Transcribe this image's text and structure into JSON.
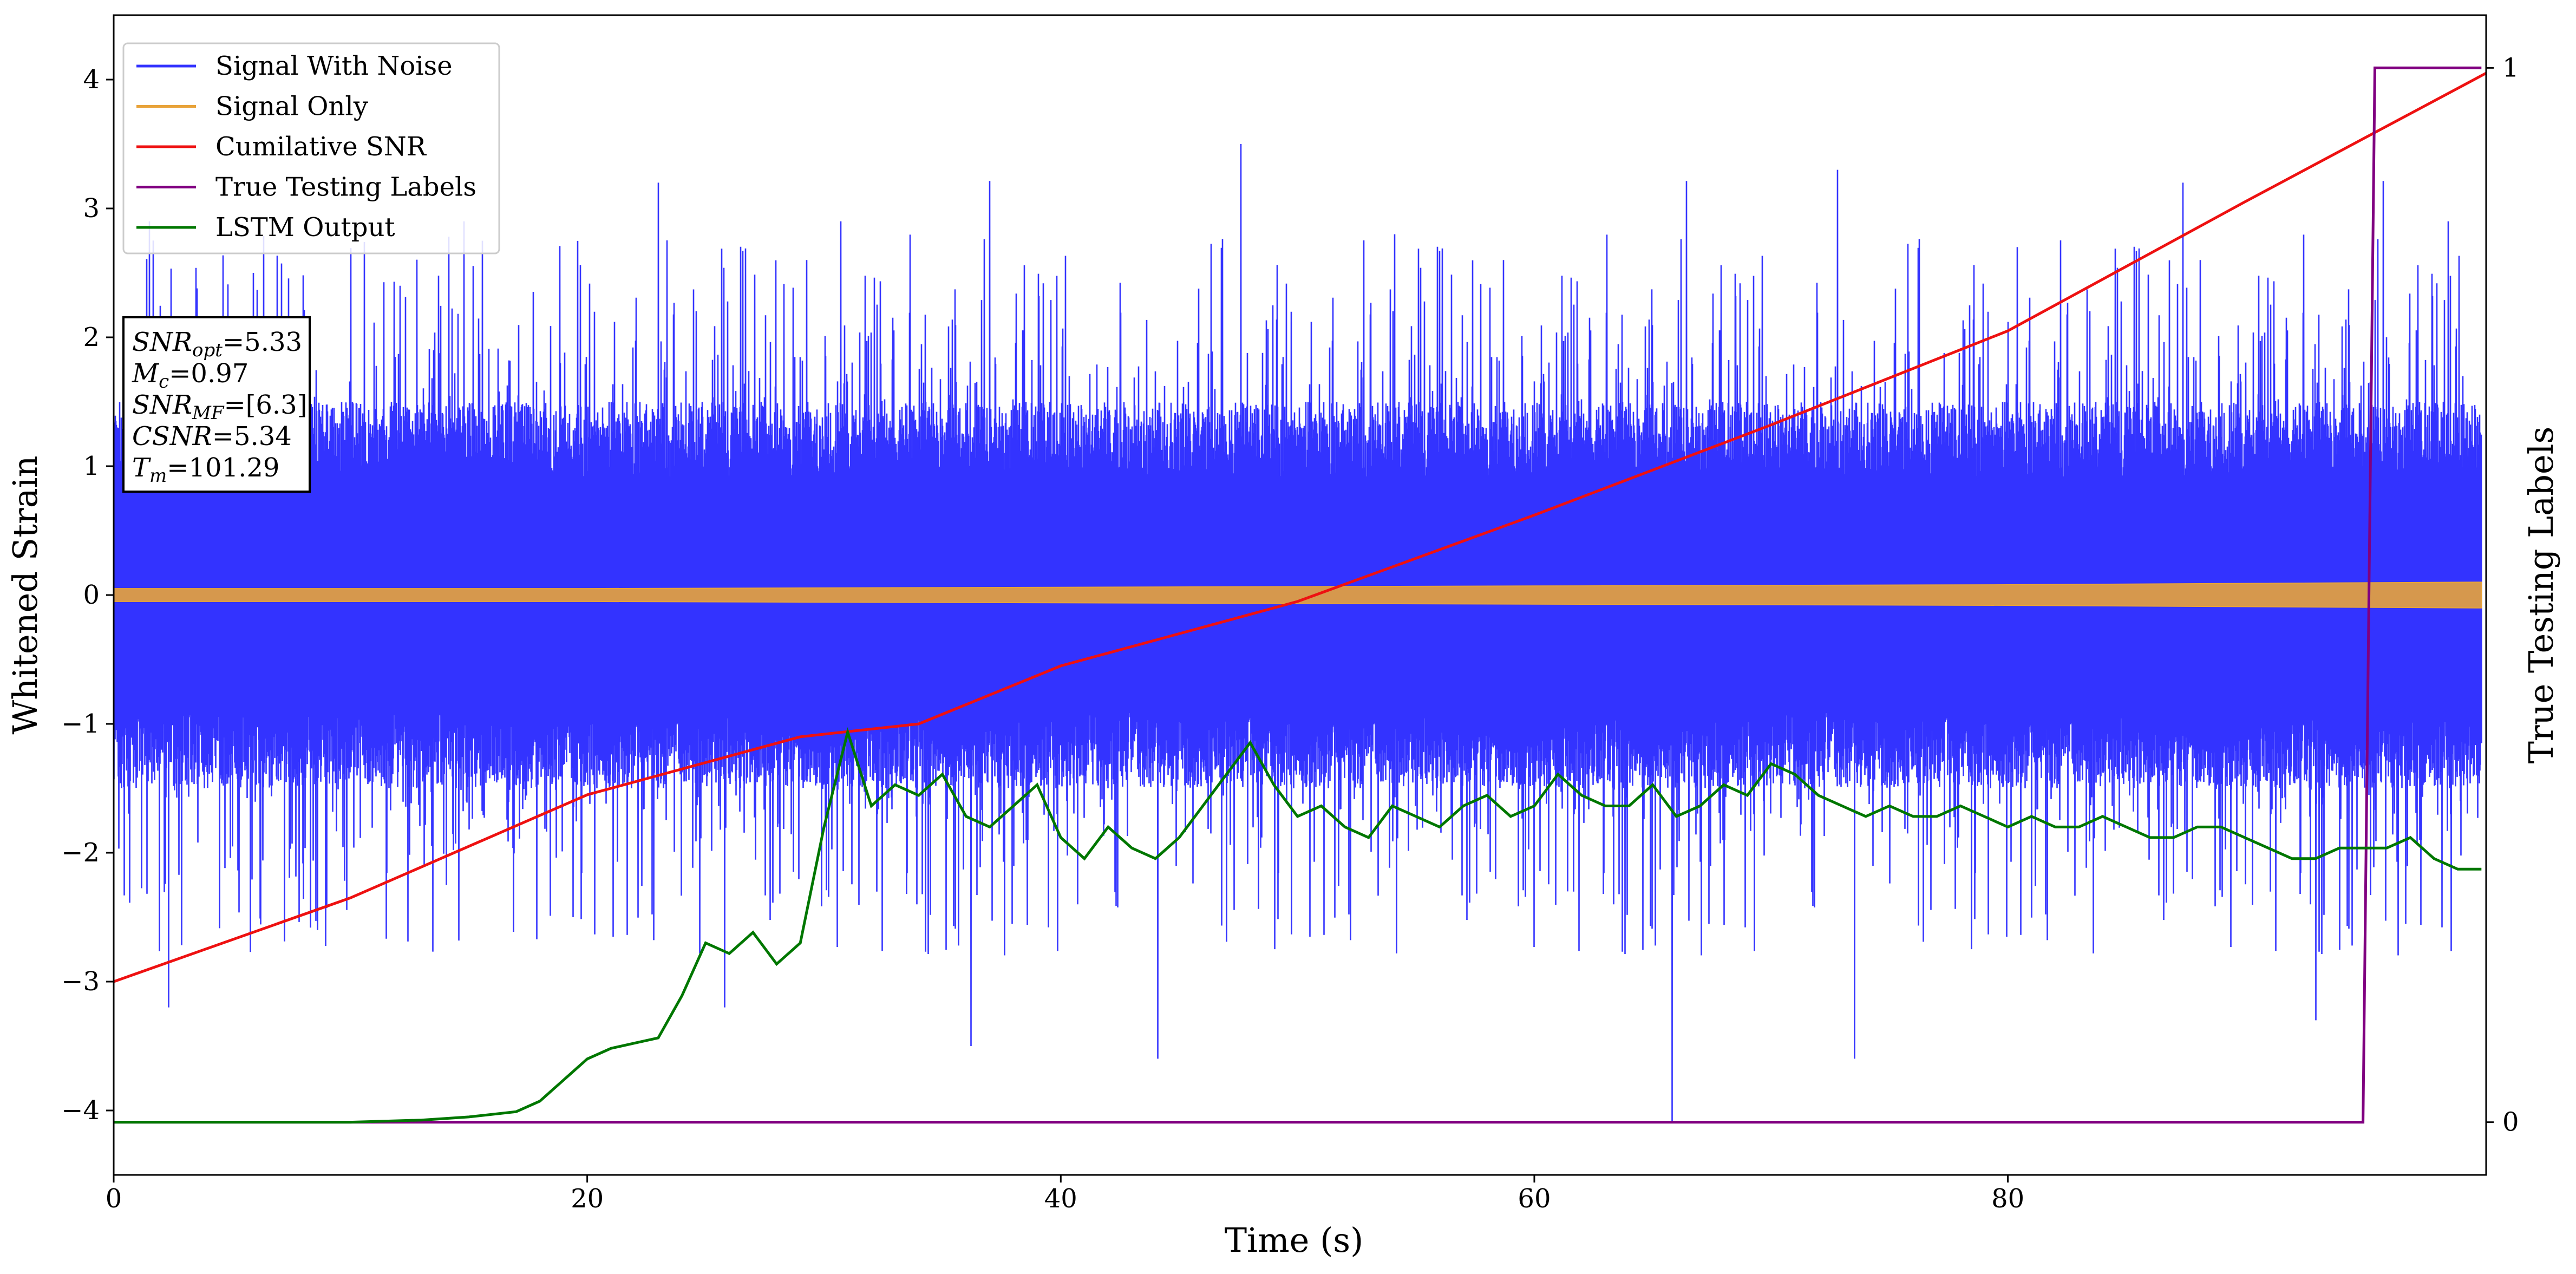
{
  "chart_data": {
    "type": "line",
    "xlabel": "Time (s)",
    "ylabel": "Whitened Strain",
    "y2label": "True Testing Labels",
    "xlim": [
      0,
      100.2
    ],
    "ylim": [
      -4.5,
      4.5
    ],
    "y2lim": [
      -0.05,
      1.05
    ],
    "xticks": [
      0,
      20,
      40,
      60,
      80
    ],
    "yticks": [
      -4,
      -3,
      -2,
      -1,
      0,
      1,
      2,
      3,
      4
    ],
    "y2ticks": [
      0,
      1
    ],
    "xtick_labels": [
      "0",
      "20",
      "40",
      "60",
      "80"
    ],
    "ytick_labels": [
      "−4",
      "−3",
      "−2",
      "−1",
      "0",
      "1",
      "2",
      "3",
      "4"
    ],
    "y2tick_labels": [
      "0",
      "1"
    ],
    "legend_position": "top-left",
    "grid": false,
    "colors": {
      "signal_with_noise": "#3333ff",
      "signal_only": "#e8a33a",
      "cumulative_snr": "#ee1111",
      "true_labels": "#800080",
      "lstm_output": "#007700"
    },
    "series": [
      {
        "name": "Signal With Noise",
        "axis": "left",
        "description_range": [
          -3.5,
          4.0
        ],
        "samples": "dense noise band roughly ±1.5 with spikes to ±3.5",
        "x": [
          0,
          1.5,
          2.3,
          5.9,
          8.6,
          12.1,
          14.8,
          19.4,
          23.0,
          25.8,
          30.7,
          36.2,
          40.7,
          47.6,
          54.1,
          61.4,
          65.8,
          72.8,
          80.4,
          87.4,
          93.0,
          96.0,
          98.6,
          100
        ],
        "y": [
          0.1,
          2.9,
          -3.2,
          2.5,
          -2.6,
          2.4,
          2.9,
          -2.5,
          3.2,
          -3.2,
          2.9,
          -3.5,
          -2.4,
          3.5,
          2.8,
          -2.3,
          -4.1,
          3.3,
          2.7,
          3.2,
          -3.3,
          2.0,
          2.9,
          0.0
        ]
      },
      {
        "name": "Signal Only",
        "axis": "left",
        "x": [
          0,
          10,
          20,
          30,
          40,
          50,
          60,
          70,
          80,
          90,
          100
        ],
        "amplitude": [
          0.05,
          0.05,
          0.05,
          0.055,
          0.06,
          0.065,
          0.07,
          0.075,
          0.08,
          0.09,
          0.1
        ]
      },
      {
        "name": "Cumilative SNR",
        "axis": "left",
        "x": [
          0,
          10,
          20,
          29,
          30,
          34,
          40,
          50,
          60,
          70,
          80,
          90,
          100.2
        ],
        "y": [
          -3.0,
          -2.35,
          -1.55,
          -1.1,
          -1.08,
          -1.0,
          -0.55,
          -0.05,
          0.62,
          1.32,
          2.05,
          3.05,
          4.05
        ]
      },
      {
        "name": "True Testing Labels",
        "axis": "right",
        "x": [
          0,
          95.0,
          95.5,
          100
        ],
        "y": [
          0,
          0,
          1,
          1
        ]
      },
      {
        "name": "LSTM Output",
        "axis": "right",
        "x": [
          0,
          10,
          13,
          15,
          17,
          18,
          19,
          20,
          21,
          22,
          23,
          24,
          25,
          26,
          27,
          28,
          29,
          30,
          31,
          32,
          33,
          34,
          35,
          36,
          37,
          38,
          39,
          40,
          41,
          42,
          43,
          44,
          45,
          46,
          47,
          48,
          49,
          50,
          51,
          52,
          53,
          54,
          55,
          56,
          57,
          58,
          59,
          60,
          61,
          62,
          63,
          64,
          65,
          66,
          67,
          68,
          69,
          70,
          71,
          72,
          73,
          74,
          75,
          76,
          77,
          78,
          79,
          80,
          81,
          82,
          83,
          84,
          85,
          86,
          87,
          88,
          89,
          90,
          91,
          92,
          93,
          94,
          95,
          96,
          97,
          98,
          99,
          100
        ],
        "y": [
          0.0,
          0.0,
          0.002,
          0.005,
          0.01,
          0.02,
          0.04,
          0.06,
          0.07,
          0.075,
          0.08,
          0.12,
          0.17,
          0.16,
          0.18,
          0.15,
          0.17,
          0.28,
          0.37,
          0.3,
          0.32,
          0.31,
          0.33,
          0.29,
          0.28,
          0.3,
          0.32,
          0.27,
          0.25,
          0.28,
          0.26,
          0.25,
          0.27,
          0.3,
          0.33,
          0.36,
          0.32,
          0.29,
          0.3,
          0.28,
          0.27,
          0.3,
          0.29,
          0.28,
          0.3,
          0.31,
          0.29,
          0.3,
          0.33,
          0.31,
          0.3,
          0.3,
          0.32,
          0.29,
          0.3,
          0.32,
          0.31,
          0.34,
          0.33,
          0.31,
          0.3,
          0.29,
          0.3,
          0.29,
          0.29,
          0.3,
          0.29,
          0.28,
          0.29,
          0.28,
          0.28,
          0.29,
          0.28,
          0.27,
          0.27,
          0.28,
          0.28,
          0.27,
          0.26,
          0.25,
          0.25,
          0.26,
          0.26,
          0.26,
          0.27,
          0.25,
          0.24,
          0.24
        ]
      }
    ],
    "annotation_lines": [
      {
        "id": "snr_opt",
        "base": "SNR",
        "sub": "opt",
        "value": "=5.33"
      },
      {
        "id": "mc",
        "base": "M",
        "sub": "c",
        "value": "=0.97"
      },
      {
        "id": "snr_mf",
        "base": "SNR",
        "sub": "MF",
        "value": "=[6.3]"
      },
      {
        "id": "csnr",
        "base": "CSNR",
        "sub": "",
        "value": "=5.34"
      },
      {
        "id": "tm",
        "base": "T",
        "sub": "m",
        "value": "=101.29"
      }
    ]
  }
}
